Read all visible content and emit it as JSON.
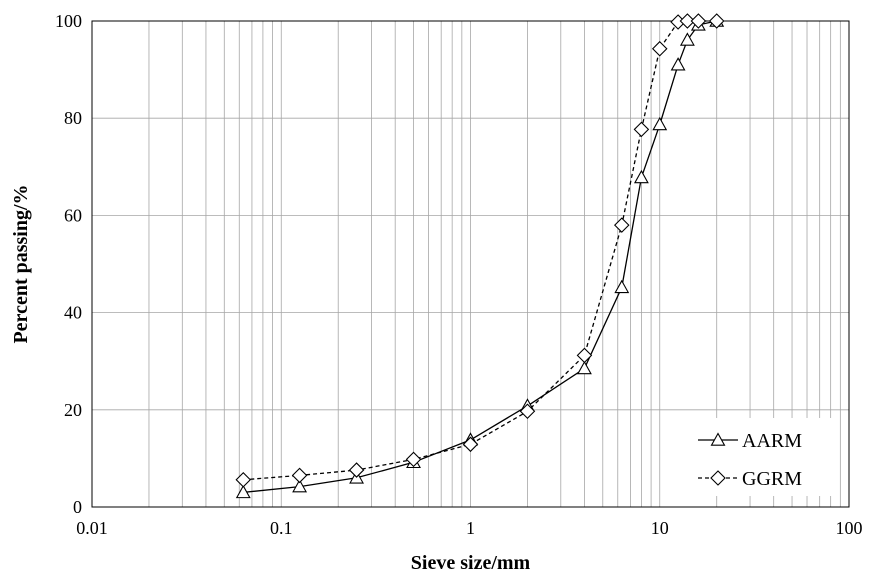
{
  "chart_data": {
    "type": "line",
    "title": "",
    "xlabel": "Sieve size/mm",
    "ylabel": "Percent passing/%",
    "x_scale": "log",
    "xlim": [
      0.01,
      100
    ],
    "ylim": [
      0,
      100
    ],
    "x_ticks": [
      0.01,
      0.1,
      1,
      10,
      100
    ],
    "x_tick_labels": [
      "0.01",
      "0.1",
      "1",
      "10",
      "100"
    ],
    "y_ticks": [
      0,
      20,
      40,
      60,
      80,
      100
    ],
    "y_tick_labels": [
      "0",
      "20",
      "40",
      "60",
      "80",
      "100"
    ],
    "grid": "major and minor, both axes",
    "legend_position": "bottom-right",
    "series": [
      {
        "name": "AARM",
        "marker": "triangle",
        "line_style": "solid",
        "color": "#000000",
        "x": [
          0.063,
          0.125,
          0.25,
          0.5,
          1,
          2,
          4,
          6.3,
          8,
          10,
          12.5,
          14,
          16,
          20
        ],
        "y": [
          3.0,
          4.2,
          6.0,
          9.2,
          13.8,
          20.8,
          28.5,
          45.2,
          67.8,
          78.7,
          91.0,
          96.1,
          99.2,
          100
        ]
      },
      {
        "name": "GGRM",
        "marker": "diamond",
        "line_style": "dashed",
        "color": "#000000",
        "x": [
          0.063,
          0.125,
          0.25,
          0.5,
          1,
          2,
          4,
          6.3,
          8,
          10,
          12.5,
          14,
          16,
          20
        ],
        "y": [
          5.6,
          6.5,
          7.6,
          9.8,
          12.9,
          19.7,
          31.2,
          58.0,
          77.7,
          94.3,
          99.8,
          100,
          100,
          100
        ]
      }
    ]
  }
}
